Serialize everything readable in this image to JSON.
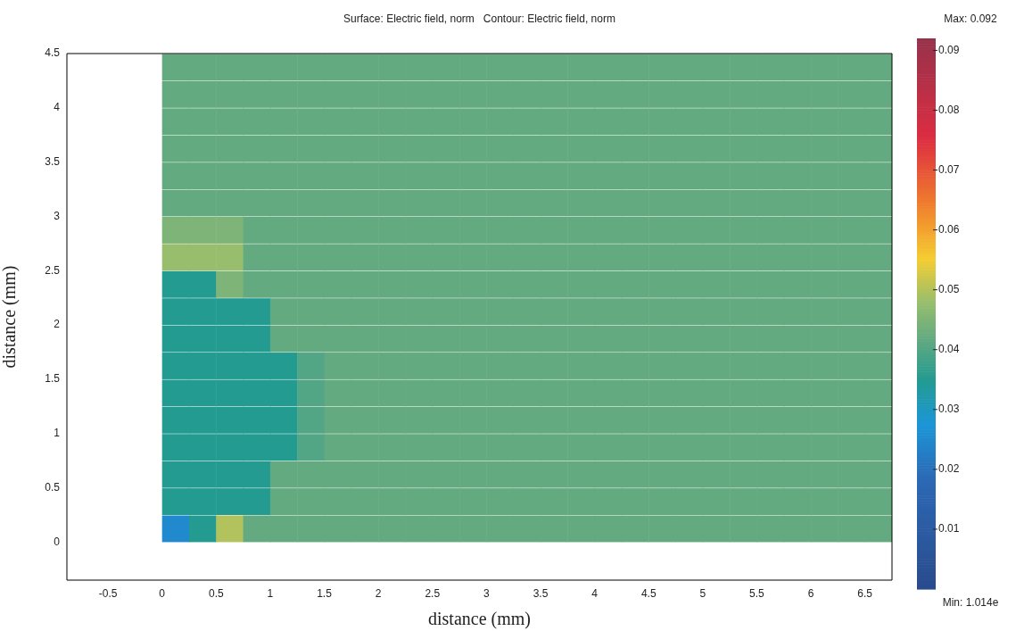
{
  "chart_data": {
    "type": "heatmap",
    "title": "Surface: Electric field, norm   Contour: Electric field, norm",
    "xlabel": "distance (mm)",
    "ylabel": "distance (mm)",
    "x": [
      0.125,
      0.375,
      0.625,
      0.875,
      1.125,
      1.375,
      1.625,
      1.875,
      2.125,
      2.375,
      2.625,
      2.875,
      3.125,
      3.375,
      3.625,
      3.875,
      4.125,
      4.375,
      4.625,
      4.875,
      5.125,
      5.375,
      5.625,
      5.875,
      6.125,
      6.375,
      6.625
    ],
    "y": [
      4.375,
      4.125,
      3.875,
      3.625,
      3.375,
      3.125,
      2.875,
      2.625,
      2.375,
      2.125,
      1.875,
      1.625,
      1.375,
      1.125,
      0.875,
      0.625,
      0.375,
      0.125
    ],
    "cells": [
      [
        0.042,
        0.042,
        0.042,
        0.042,
        0.042,
        0.042,
        0.042,
        0.042,
        0.042,
        0.042,
        0.042,
        0.042,
        0.042,
        0.042,
        0.042,
        0.042,
        0.042,
        0.042,
        0.042,
        0.042,
        0.042,
        0.042,
        0.042,
        0.042,
        0.042,
        0.042,
        0.042
      ],
      [
        0.042,
        0.042,
        0.042,
        0.042,
        0.042,
        0.042,
        0.042,
        0.042,
        0.042,
        0.042,
        0.042,
        0.042,
        0.042,
        0.042,
        0.042,
        0.042,
        0.042,
        0.042,
        0.042,
        0.042,
        0.042,
        0.042,
        0.042,
        0.042,
        0.042,
        0.042,
        0.042
      ],
      [
        0.042,
        0.042,
        0.042,
        0.042,
        0.042,
        0.042,
        0.042,
        0.042,
        0.042,
        0.042,
        0.042,
        0.042,
        0.042,
        0.042,
        0.042,
        0.042,
        0.042,
        0.042,
        0.042,
        0.042,
        0.042,
        0.042,
        0.042,
        0.042,
        0.042,
        0.042,
        0.042
      ],
      [
        0.042,
        0.042,
        0.042,
        0.042,
        0.042,
        0.042,
        0.042,
        0.042,
        0.042,
        0.042,
        0.042,
        0.042,
        0.042,
        0.042,
        0.042,
        0.042,
        0.042,
        0.042,
        0.042,
        0.042,
        0.042,
        0.042,
        0.042,
        0.042,
        0.042,
        0.042,
        0.042
      ],
      [
        0.042,
        0.042,
        0.042,
        0.042,
        0.042,
        0.042,
        0.042,
        0.042,
        0.042,
        0.042,
        0.042,
        0.042,
        0.042,
        0.042,
        0.042,
        0.042,
        0.042,
        0.042,
        0.042,
        0.042,
        0.042,
        0.042,
        0.042,
        0.042,
        0.042,
        0.042,
        0.042
      ],
      [
        0.042,
        0.042,
        0.042,
        0.042,
        0.042,
        0.042,
        0.042,
        0.042,
        0.042,
        0.042,
        0.042,
        0.042,
        0.042,
        0.042,
        0.042,
        0.042,
        0.042,
        0.042,
        0.042,
        0.042,
        0.042,
        0.042,
        0.042,
        0.042,
        0.042,
        0.042,
        0.042
      ],
      [
        0.045,
        0.045,
        0.045,
        0.042,
        0.042,
        0.042,
        0.042,
        0.042,
        0.042,
        0.042,
        0.042,
        0.042,
        0.042,
        0.042,
        0.042,
        0.042,
        0.042,
        0.042,
        0.042,
        0.042,
        0.042,
        0.042,
        0.042,
        0.042,
        0.042,
        0.042,
        0.042
      ],
      [
        0.048,
        0.048,
        0.048,
        0.042,
        0.042,
        0.042,
        0.042,
        0.042,
        0.042,
        0.042,
        0.042,
        0.042,
        0.042,
        0.042,
        0.042,
        0.042,
        0.042,
        0.042,
        0.042,
        0.042,
        0.042,
        0.042,
        0.042,
        0.042,
        0.042,
        0.042,
        0.042
      ],
      [
        0.035,
        0.035,
        0.045,
        0.042,
        0.042,
        0.042,
        0.042,
        0.042,
        0.042,
        0.042,
        0.042,
        0.042,
        0.042,
        0.042,
        0.042,
        0.042,
        0.042,
        0.042,
        0.042,
        0.042,
        0.042,
        0.042,
        0.042,
        0.042,
        0.042,
        0.042,
        0.042
      ],
      [
        0.035,
        0.035,
        0.035,
        0.035,
        0.042,
        0.042,
        0.042,
        0.042,
        0.042,
        0.042,
        0.042,
        0.042,
        0.042,
        0.042,
        0.042,
        0.042,
        0.042,
        0.042,
        0.042,
        0.042,
        0.042,
        0.042,
        0.042,
        0.042,
        0.042,
        0.042,
        0.042
      ],
      [
        0.035,
        0.035,
        0.035,
        0.035,
        0.042,
        0.042,
        0.042,
        0.042,
        0.042,
        0.042,
        0.042,
        0.042,
        0.042,
        0.042,
        0.042,
        0.042,
        0.042,
        0.042,
        0.042,
        0.042,
        0.042,
        0.042,
        0.042,
        0.042,
        0.042,
        0.042,
        0.042
      ],
      [
        0.035,
        0.035,
        0.035,
        0.035,
        0.035,
        0.04,
        0.042,
        0.042,
        0.042,
        0.042,
        0.042,
        0.042,
        0.042,
        0.042,
        0.042,
        0.042,
        0.042,
        0.042,
        0.042,
        0.042,
        0.042,
        0.042,
        0.042,
        0.042,
        0.042,
        0.042,
        0.042
      ],
      [
        0.035,
        0.035,
        0.035,
        0.035,
        0.035,
        0.04,
        0.042,
        0.042,
        0.042,
        0.042,
        0.042,
        0.042,
        0.042,
        0.042,
        0.042,
        0.042,
        0.042,
        0.042,
        0.042,
        0.042,
        0.042,
        0.042,
        0.042,
        0.042,
        0.042,
        0.042,
        0.042
      ],
      [
        0.035,
        0.035,
        0.035,
        0.035,
        0.035,
        0.04,
        0.042,
        0.042,
        0.042,
        0.042,
        0.042,
        0.042,
        0.042,
        0.042,
        0.042,
        0.042,
        0.042,
        0.042,
        0.042,
        0.042,
        0.042,
        0.042,
        0.042,
        0.042,
        0.042,
        0.042,
        0.042
      ],
      [
        0.035,
        0.035,
        0.035,
        0.035,
        0.035,
        0.04,
        0.042,
        0.042,
        0.042,
        0.042,
        0.042,
        0.042,
        0.042,
        0.042,
        0.042,
        0.042,
        0.042,
        0.042,
        0.042,
        0.042,
        0.042,
        0.042,
        0.042,
        0.042,
        0.042,
        0.042,
        0.042
      ],
      [
        0.035,
        0.035,
        0.035,
        0.035,
        0.042,
        0.042,
        0.042,
        0.042,
        0.042,
        0.042,
        0.042,
        0.042,
        0.042,
        0.042,
        0.042,
        0.042,
        0.042,
        0.042,
        0.042,
        0.042,
        0.042,
        0.042,
        0.042,
        0.042,
        0.042,
        0.042,
        0.042
      ],
      [
        0.035,
        0.035,
        0.035,
        0.035,
        0.042,
        0.042,
        0.042,
        0.042,
        0.042,
        0.042,
        0.042,
        0.042,
        0.042,
        0.042,
        0.042,
        0.042,
        0.042,
        0.042,
        0.042,
        0.042,
        0.042,
        0.042,
        0.042,
        0.042,
        0.042,
        0.042,
        0.042
      ],
      [
        0.025,
        0.035,
        0.05,
        0.042,
        0.042,
        0.042,
        0.042,
        0.042,
        0.042,
        0.042,
        0.042,
        0.042,
        0.042,
        0.042,
        0.042,
        0.042,
        0.042,
        0.042,
        0.042,
        0.042,
        0.042,
        0.042,
        0.042,
        0.042,
        0.042,
        0.042,
        0.042
      ]
    ],
    "xlim": [
      -0.88,
      6.75
    ],
    "xticks": [
      -0.5,
      0,
      0.5,
      1,
      1.5,
      2,
      2.5,
      3,
      3.5,
      4,
      4.5,
      5,
      5.5,
      6,
      6.5
    ],
    "ylim": [
      -0.35,
      4.5
    ],
    "yticks": [
      0,
      0.5,
      1,
      1.5,
      2,
      2.5,
      3,
      3.5,
      4,
      4.5
    ],
    "clim": [
      0,
      0.092
    ],
    "cticks": [
      0.01,
      0.02,
      0.03,
      0.04,
      0.05,
      0.06,
      0.07,
      0.08,
      0.09
    ],
    "annotations": [
      "Max: 0.092",
      "Min: 1.014e"
    ],
    "grid": false
  }
}
